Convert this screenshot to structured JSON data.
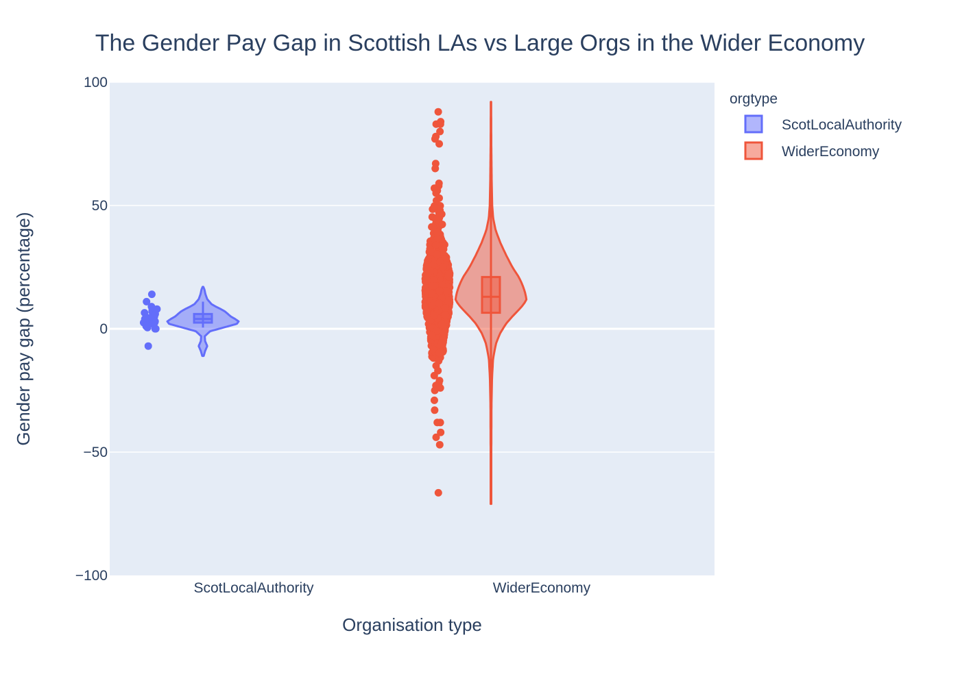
{
  "chart_data": {
    "type": "violin",
    "title": "The Gender Pay Gap in Scottish LAs vs Large Orgs in the Wider Economy",
    "xlabel": "Organisation type",
    "ylabel": "Gender pay gap (percentage)",
    "ylim": [
      -100,
      100
    ],
    "yticks": [
      100,
      50,
      0,
      -50,
      -100
    ],
    "ytick_labels": [
      "100",
      "50",
      "0",
      "−50",
      "−100"
    ],
    "categories": [
      "ScotLocalAuthority",
      "WiderEconomy"
    ],
    "grid": true,
    "legend": {
      "title": "orgtype",
      "placement": "top-right"
    },
    "series": [
      {
        "name": "ScotLocalAuthority",
        "category": "ScotLocalAuthority",
        "color": "#636efa",
        "box": {
          "q1": 2.5,
          "median": 4.0,
          "q3": 6.0,
          "whisker_low": 0.5,
          "whisker_high": 11
        },
        "violin_range": [
          -11,
          17
        ],
        "density": [
          [
            -11,
            0.02
          ],
          [
            -9,
            0.06
          ],
          [
            -7,
            0.12
          ],
          [
            -5,
            0.06
          ],
          [
            -3,
            0.05
          ],
          [
            -1,
            0.2
          ],
          [
            1,
            0.7
          ],
          [
            2,
            0.95
          ],
          [
            3,
            1.0
          ],
          [
            4,
            0.9
          ],
          [
            5,
            0.78
          ],
          [
            6,
            0.7
          ],
          [
            7,
            0.62
          ],
          [
            8,
            0.5
          ],
          [
            9,
            0.36
          ],
          [
            10,
            0.24
          ],
          [
            12,
            0.12
          ],
          [
            14,
            0.07
          ],
          [
            16,
            0.04
          ],
          [
            17,
            0.01
          ]
        ],
        "points": [
          14,
          11,
          9,
          8,
          7.5,
          7,
          6.5,
          6,
          5.5,
          5,
          5,
          4.5,
          4.5,
          4,
          4,
          3.5,
          3.5,
          3,
          3,
          2.5,
          2.5,
          2,
          2,
          1.5,
          1,
          0.5,
          0,
          0,
          -7
        ]
      },
      {
        "name": "WiderEconomy",
        "category": "WiderEconomy",
        "color": "#ef553b",
        "box": {
          "q1": 6.5,
          "median": 13.0,
          "q3": 21.0,
          "whisker_low": -25,
          "whisker_high": 60
        },
        "violin_range": [
          -71,
          92
        ],
        "density": [
          [
            -71,
            0.01
          ],
          [
            -50,
            0.01
          ],
          [
            -30,
            0.015
          ],
          [
            -20,
            0.03
          ],
          [
            -12,
            0.06
          ],
          [
            -6,
            0.14
          ],
          [
            -2,
            0.25
          ],
          [
            2,
            0.42
          ],
          [
            5,
            0.6
          ],
          [
            8,
            0.8
          ],
          [
            10,
            0.92
          ],
          [
            12,
            1.0
          ],
          [
            15,
            0.95
          ],
          [
            18,
            0.88
          ],
          [
            21,
            0.78
          ],
          [
            25,
            0.6
          ],
          [
            30,
            0.42
          ],
          [
            35,
            0.26
          ],
          [
            40,
            0.13
          ],
          [
            45,
            0.06
          ],
          [
            50,
            0.035
          ],
          [
            60,
            0.02
          ],
          [
            75,
            0.01
          ],
          [
            92,
            0.005
          ]
        ],
        "points_extra": [
          88,
          84,
          83,
          83,
          80,
          78,
          77,
          75,
          67,
          65,
          59,
          58,
          57,
          56,
          55,
          53,
          52,
          -13,
          -15,
          -17,
          -19,
          -21,
          -22,
          -23,
          -24,
          -25,
          -29,
          -33,
          -38,
          -38,
          -42,
          -44,
          -47,
          -66.5
        ],
        "points_dense_range": [
          -12,
          50
        ]
      }
    ]
  }
}
